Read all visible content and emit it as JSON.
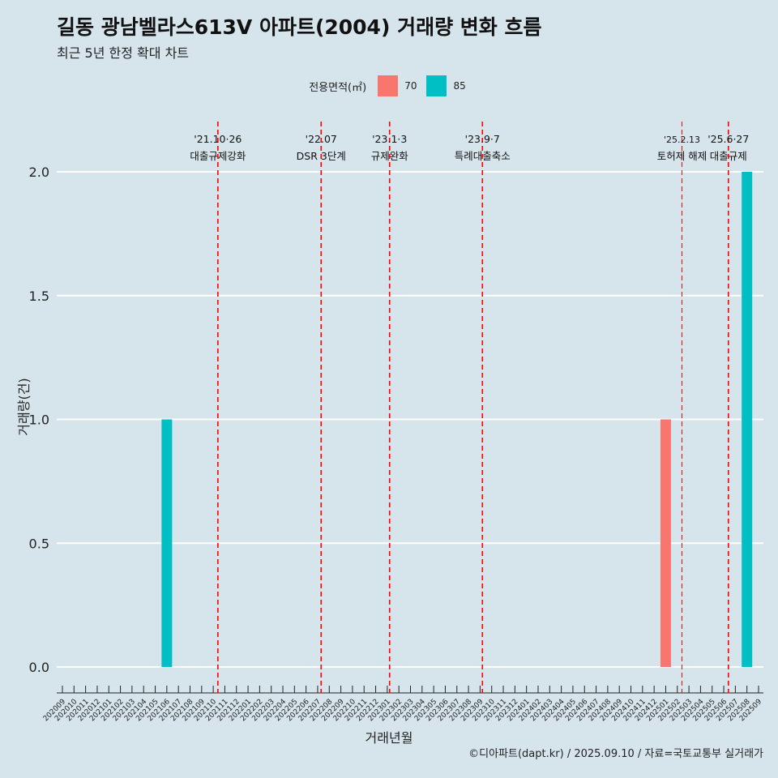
{
  "header": {
    "title": "길동 광남벨라스613V 아파트(2004) 거래량 변화 흐름",
    "subtitle": "최근 5년 한정 확대 차트"
  },
  "legend": {
    "title": "전용면적(㎡)",
    "items": [
      {
        "label": "70",
        "color": "#F8766D"
      },
      {
        "label": "85",
        "color": "#00BFC4"
      }
    ]
  },
  "caption": "©디아파트(dapt.kr) / 2025.09.10 / 자료=국토교통부 실거래가",
  "chart_data": {
    "type": "bar",
    "xlabel": "거래년월",
    "ylabel": "거래량(건)",
    "ylim": [
      0,
      2
    ],
    "yticks": [
      "0.0",
      "0.5",
      "1.0",
      "1.5",
      "2.0"
    ],
    "categories": [
      "202009",
      "202010",
      "202011",
      "202012",
      "202101",
      "202102",
      "202103",
      "202104",
      "202105",
      "202106",
      "202107",
      "202108",
      "202109",
      "202110",
      "202111",
      "202112",
      "202201",
      "202202",
      "202203",
      "202204",
      "202205",
      "202206",
      "202207",
      "202208",
      "202209",
      "202210",
      "202211",
      "202212",
      "202301",
      "202302",
      "202303",
      "202304",
      "202305",
      "202306",
      "202307",
      "202308",
      "202309",
      "202310",
      "202311",
      "202312",
      "202401",
      "202402",
      "202403",
      "202404",
      "202405",
      "202406",
      "202407",
      "202408",
      "202409",
      "202410",
      "202411",
      "202412",
      "202501",
      "202502",
      "202503",
      "202504",
      "202505",
      "202506",
      "202507",
      "202508",
      "202509"
    ],
    "series": [
      {
        "name": "70",
        "color": "#F8766D",
        "points": [
          {
            "x": "202501",
            "y": 1
          }
        ]
      },
      {
        "name": "85",
        "color": "#00BFC4",
        "points": [
          {
            "x": "202106",
            "y": 1
          },
          {
            "x": "202508",
            "y": 2
          }
        ]
      }
    ],
    "events": [
      {
        "date": "'21.10·26",
        "label": "대출규제강화",
        "pos": 13.4
      },
      {
        "date": "'22.07",
        "label": "DSR 3단계",
        "pos": 22.3
      },
      {
        "date": "'23.1·3",
        "label": "규제완화",
        "pos": 28.2
      },
      {
        "date": "'23.9·7",
        "label": "특례대출축소",
        "pos": 36.2
      },
      {
        "date": "'25.2.13",
        "label": "토허제 해제",
        "pos": 53.4,
        "thin": true,
        "small": true
      },
      {
        "date": "'25.6·27",
        "label": "대출규제",
        "pos": 57.4
      }
    ]
  }
}
